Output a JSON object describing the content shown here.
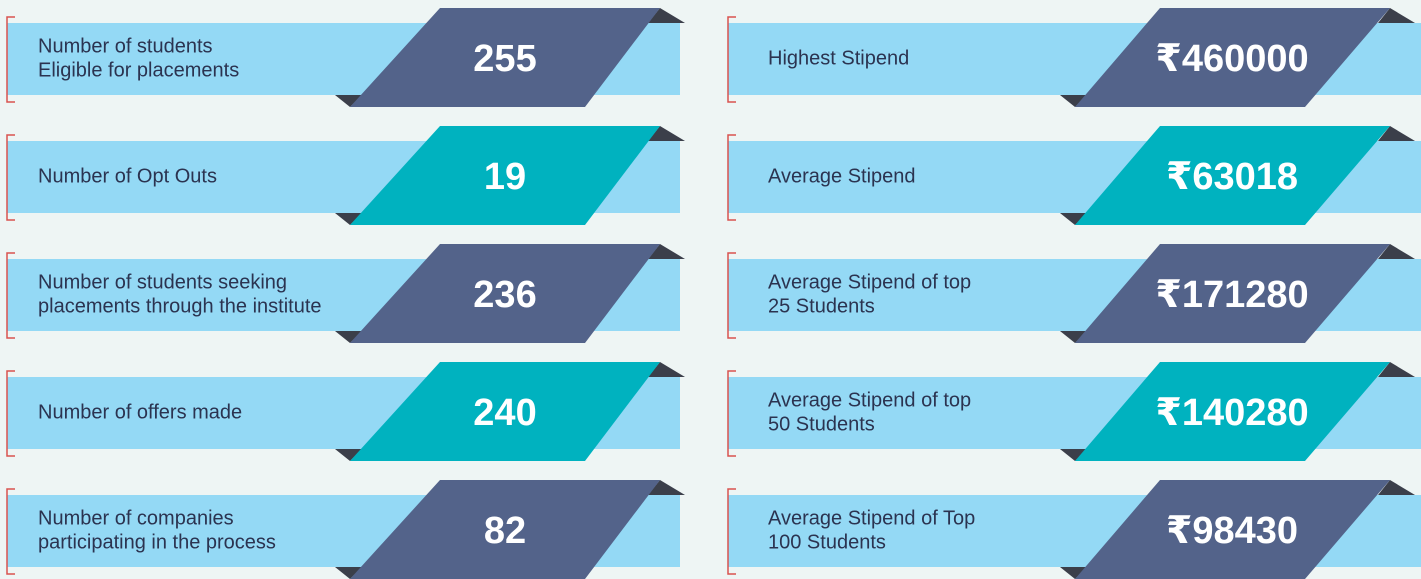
{
  "columns": [
    {
      "items": [
        {
          "label": [
            "Number of students",
            "Eligible for placements"
          ],
          "value": "255",
          "color": "#53638a"
        },
        {
          "label": [
            "Number of Opt Outs"
          ],
          "value": "19",
          "color": "#00b2bf"
        },
        {
          "label": [
            "Number of students seeking",
            "placements through the institute"
          ],
          "value": "236",
          "color": "#53638a"
        },
        {
          "label": [
            "Number of offers made"
          ],
          "value": "240",
          "color": "#00b2bf"
        },
        {
          "label": [
            "Number of companies",
            "participating in the process"
          ],
          "value": "82",
          "color": "#53638a"
        }
      ]
    },
    {
      "items": [
        {
          "label": [
            "Highest Stipend"
          ],
          "value": "₹460000",
          "color": "#53638a"
        },
        {
          "label": [
            "Average Stipend"
          ],
          "value": "₹63018",
          "color": "#00b2bf"
        },
        {
          "label": [
            "Average Stipend of top",
            "25 Students"
          ],
          "value": "₹171280",
          "color": "#53638a"
        },
        {
          "label": [
            "Average Stipend of top",
            "50 Students"
          ],
          "value": "₹140280",
          "color": "#00b2bf"
        },
        {
          "label": [
            "Average Stipend of Top",
            "100 Students"
          ],
          "value": "₹98430",
          "color": "#53638a"
        }
      ]
    }
  ]
}
